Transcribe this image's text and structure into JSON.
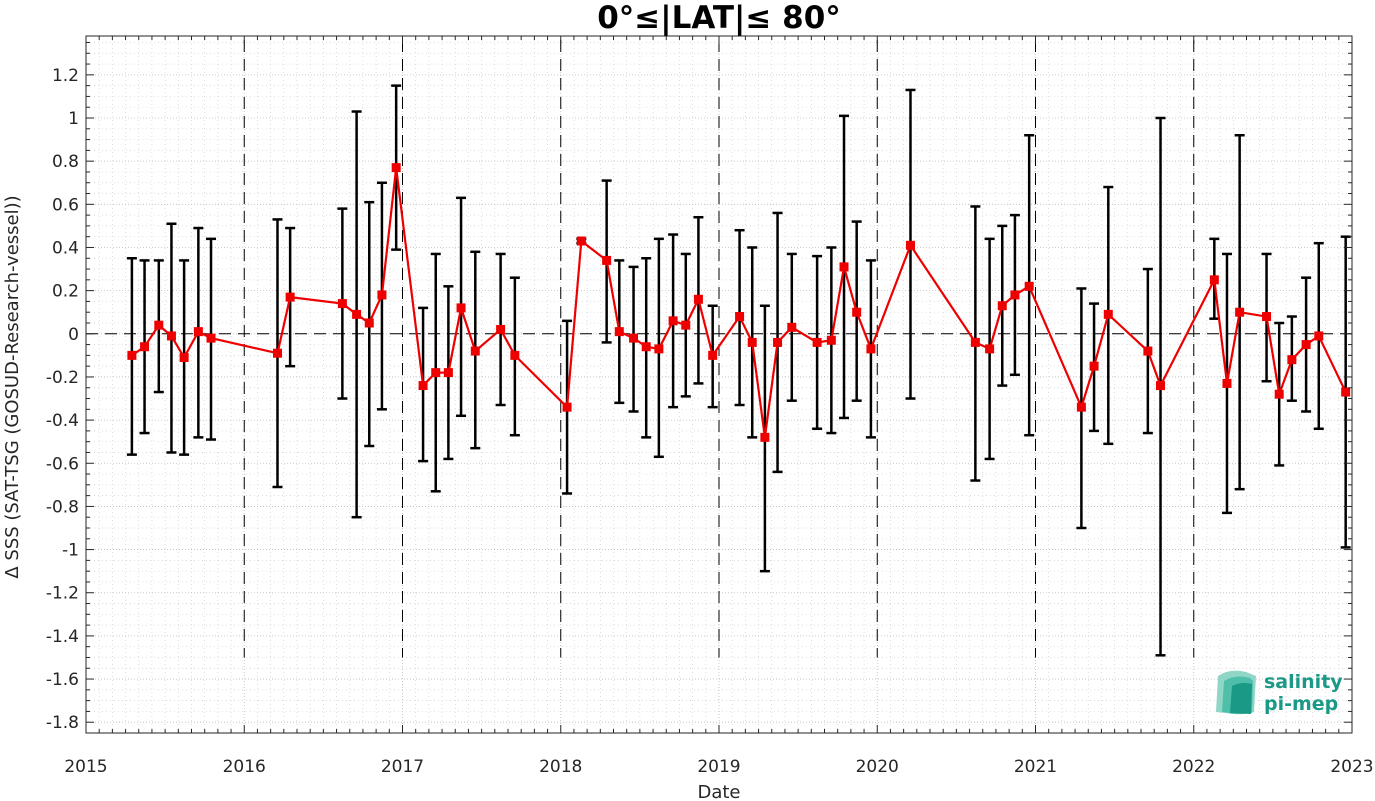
{
  "chart_data": {
    "type": "line",
    "title": "0°≤|LAT|≤ 80°",
    "xlabel": "Date",
    "ylabel": "Δ SSS (SAT-TSG (GOSUD-Research-vessel))",
    "xlim": [
      2015,
      2023
    ],
    "ylim": [
      -1.85,
      1.38
    ],
    "xticks": [
      2015,
      2016,
      2017,
      2018,
      2019,
      2020,
      2021,
      2022,
      2023
    ],
    "xtick_labels": [
      "2015",
      "2016",
      "2017",
      "2018",
      "2019",
      "2020",
      "2021",
      "2022",
      "2023"
    ],
    "yticks": [
      -1.8,
      -1.6,
      -1.4,
      -1.2,
      -1,
      -0.8,
      -0.6,
      -0.4,
      -0.2,
      0,
      0.2,
      0.4,
      0.6,
      0.8,
      1,
      1.2
    ],
    "ytick_labels": [
      "-1.8",
      "-1.6",
      "-1.4",
      "-1.2",
      "-1",
      "-0.8",
      "-0.6",
      "-0.4",
      "-0.2",
      "0",
      "0.2",
      "0.4",
      "0.6",
      "0.8",
      "1",
      "1.2"
    ],
    "grid": true,
    "year_separators": [
      2016,
      2017,
      2018,
      2019,
      2020,
      2021,
      2022
    ],
    "series": [
      {
        "color": "#ee0000",
        "errorbar_color": "#000000",
        "points": [
          {
            "x": 2015.29,
            "y": -0.1,
            "lo": -0.56,
            "hi": 0.35
          },
          {
            "x": 2015.37,
            "y": -0.06,
            "lo": -0.46,
            "hi": 0.34
          },
          {
            "x": 2015.46,
            "y": 0.04,
            "lo": -0.27,
            "hi": 0.34
          },
          {
            "x": 2015.54,
            "y": -0.01,
            "lo": -0.55,
            "hi": 0.51
          },
          {
            "x": 2015.62,
            "y": -0.11,
            "lo": -0.56,
            "hi": 0.34
          },
          {
            "x": 2015.71,
            "y": 0.01,
            "lo": -0.48,
            "hi": 0.49
          },
          {
            "x": 2015.79,
            "y": -0.02,
            "lo": -0.49,
            "hi": 0.44
          },
          {
            "x": 2016.21,
            "y": -0.09,
            "lo": -0.71,
            "hi": 0.53
          },
          {
            "x": 2016.29,
            "y": 0.17,
            "lo": -0.15,
            "hi": 0.49
          },
          {
            "x": 2016.62,
            "y": 0.14,
            "lo": -0.3,
            "hi": 0.58
          },
          {
            "x": 2016.71,
            "y": 0.09,
            "lo": -0.85,
            "hi": 1.03
          },
          {
            "x": 2016.79,
            "y": 0.05,
            "lo": -0.52,
            "hi": 0.61
          },
          {
            "x": 2016.87,
            "y": 0.18,
            "lo": -0.35,
            "hi": 0.7
          },
          {
            "x": 2016.96,
            "y": 0.77,
            "lo": 0.39,
            "hi": 1.15
          },
          {
            "x": 2017.13,
            "y": -0.24,
            "lo": -0.59,
            "hi": 0.12
          },
          {
            "x": 2017.21,
            "y": -0.18,
            "lo": -0.73,
            "hi": 0.37
          },
          {
            "x": 2017.29,
            "y": -0.18,
            "lo": -0.58,
            "hi": 0.22
          },
          {
            "x": 2017.37,
            "y": 0.12,
            "lo": -0.38,
            "hi": 0.63
          },
          {
            "x": 2017.46,
            "y": -0.08,
            "lo": -0.53,
            "hi": 0.38
          },
          {
            "x": 2017.62,
            "y": 0.02,
            "lo": -0.33,
            "hi": 0.37
          },
          {
            "x": 2017.71,
            "y": -0.1,
            "lo": -0.47,
            "hi": 0.26
          },
          {
            "x": 2018.04,
            "y": -0.34,
            "lo": -0.74,
            "hi": 0.06
          },
          {
            "x": 2018.13,
            "y": 0.43,
            "lo": 0.42,
            "hi": 0.44
          },
          {
            "x": 2018.29,
            "y": 0.34,
            "lo": -0.04,
            "hi": 0.71
          },
          {
            "x": 2018.37,
            "y": 0.01,
            "lo": -0.32,
            "hi": 0.34
          },
          {
            "x": 2018.46,
            "y": -0.02,
            "lo": -0.36,
            "hi": 0.31
          },
          {
            "x": 2018.54,
            "y": -0.06,
            "lo": -0.48,
            "hi": 0.35
          },
          {
            "x": 2018.62,
            "y": -0.07,
            "lo": -0.57,
            "hi": 0.44
          },
          {
            "x": 2018.71,
            "y": 0.06,
            "lo": -0.34,
            "hi": 0.46
          },
          {
            "x": 2018.79,
            "y": 0.04,
            "lo": -0.29,
            "hi": 0.37
          },
          {
            "x": 2018.87,
            "y": 0.16,
            "lo": -0.23,
            "hi": 0.54
          },
          {
            "x": 2018.96,
            "y": -0.1,
            "lo": -0.34,
            "hi": 0.13
          },
          {
            "x": 2019.13,
            "y": 0.08,
            "lo": -0.33,
            "hi": 0.48
          },
          {
            "x": 2019.21,
            "y": -0.04,
            "lo": -0.48,
            "hi": 0.4
          },
          {
            "x": 2019.29,
            "y": -0.48,
            "lo": -1.1,
            "hi": 0.13
          },
          {
            "x": 2019.37,
            "y": -0.04,
            "lo": -0.64,
            "hi": 0.56
          },
          {
            "x": 2019.46,
            "y": 0.03,
            "lo": -0.31,
            "hi": 0.37
          },
          {
            "x": 2019.62,
            "y": -0.04,
            "lo": -0.44,
            "hi": 0.36
          },
          {
            "x": 2019.71,
            "y": -0.03,
            "lo": -0.46,
            "hi": 0.4
          },
          {
            "x": 2019.79,
            "y": 0.31,
            "lo": -0.39,
            "hi": 1.01
          },
          {
            "x": 2019.87,
            "y": 0.1,
            "lo": -0.31,
            "hi": 0.52
          },
          {
            "x": 2019.96,
            "y": -0.07,
            "lo": -0.48,
            "hi": 0.34
          },
          {
            "x": 2020.21,
            "y": 0.41,
            "lo": -0.3,
            "hi": 1.13
          },
          {
            "x": 2020.62,
            "y": -0.04,
            "lo": -0.68,
            "hi": 0.59
          },
          {
            "x": 2020.71,
            "y": -0.07,
            "lo": -0.58,
            "hi": 0.44
          },
          {
            "x": 2020.79,
            "y": 0.13,
            "lo": -0.24,
            "hi": 0.5
          },
          {
            "x": 2020.87,
            "y": 0.18,
            "lo": -0.19,
            "hi": 0.55
          },
          {
            "x": 2020.96,
            "y": 0.22,
            "lo": -0.47,
            "hi": 0.92
          },
          {
            "x": 2021.29,
            "y": -0.34,
            "lo": -0.9,
            "hi": 0.21
          },
          {
            "x": 2021.37,
            "y": -0.15,
            "lo": -0.45,
            "hi": 0.14
          },
          {
            "x": 2021.46,
            "y": 0.09,
            "lo": -0.51,
            "hi": 0.68
          },
          {
            "x": 2021.71,
            "y": -0.08,
            "lo": -0.46,
            "hi": 0.3
          },
          {
            "x": 2021.79,
            "y": -0.24,
            "lo": -1.49,
            "hi": 1.0
          },
          {
            "x": 2022.13,
            "y": 0.25,
            "lo": 0.07,
            "hi": 0.44
          },
          {
            "x": 2022.21,
            "y": -0.23,
            "lo": -0.83,
            "hi": 0.37
          },
          {
            "x": 2022.29,
            "y": 0.1,
            "lo": -0.72,
            "hi": 0.92
          },
          {
            "x": 2022.46,
            "y": 0.08,
            "lo": -0.22,
            "hi": 0.37
          },
          {
            "x": 2022.54,
            "y": -0.28,
            "lo": -0.61,
            "hi": 0.05
          },
          {
            "x": 2022.62,
            "y": -0.12,
            "lo": -0.31,
            "hi": 0.08
          },
          {
            "x": 2022.71,
            "y": -0.05,
            "lo": -0.36,
            "hi": 0.26
          },
          {
            "x": 2022.79,
            "y": -0.01,
            "lo": -0.44,
            "hi": 0.42
          },
          {
            "x": 2022.96,
            "y": -0.27,
            "lo": -0.99,
            "hi": 0.45
          }
        ]
      }
    ]
  },
  "logo": {
    "line1": "salinity",
    "line2": "pi-mep",
    "color": "#1a9a86"
  }
}
